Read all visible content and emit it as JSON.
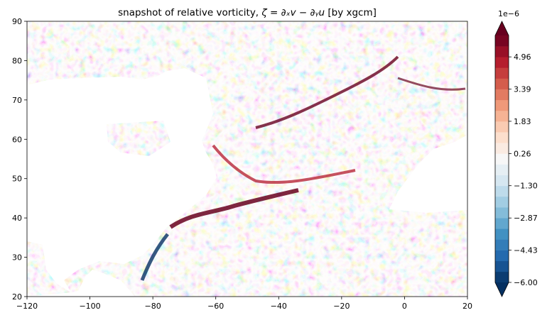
{
  "chart_data": {
    "type": "heatmap",
    "title_prefix": "snapshot of relative vorticity, ",
    "title_math": "ζ = ∂ₓv − ∂ᵧu",
    "title_suffix": " [by xgcm]",
    "x_ticks": [
      -120,
      -100,
      -80,
      -60,
      -40,
      -20,
      0,
      20
    ],
    "x_tick_labels": [
      "−120",
      "−100",
      "−80",
      "−60",
      "−40",
      "−20",
      "0",
      "20"
    ],
    "y_ticks": [
      20,
      30,
      40,
      50,
      60,
      70,
      80,
      90
    ],
    "y_tick_labels": [
      "20",
      "30",
      "40",
      "50",
      "60",
      "70",
      "80",
      "90"
    ],
    "xlim": [
      -120,
      20
    ],
    "ylim": [
      20,
      90
    ],
    "colorbar": {
      "exponent_label": "1e−6",
      "vmin": -6.0,
      "vmax": 6.0,
      "n_levels": 23,
      "extend": "both",
      "tick_values": [
        -6.0,
        -4.43,
        -2.87,
        -1.3,
        0.26,
        1.83,
        3.39,
        4.96
      ],
      "tick_labels": [
        "−6.00",
        "−4.43",
        "−2.87",
        "−1.30",
        "0.26",
        "1.83",
        "3.39",
        "4.96"
      ],
      "cmap": [
        "#053061",
        "#2166ac",
        "#4393c3",
        "#92c5de",
        "#d1e5f0",
        "#f7f7f7",
        "#fddbc7",
        "#f4a582",
        "#d6604d",
        "#b2182b",
        "#67001f"
      ]
    }
  }
}
